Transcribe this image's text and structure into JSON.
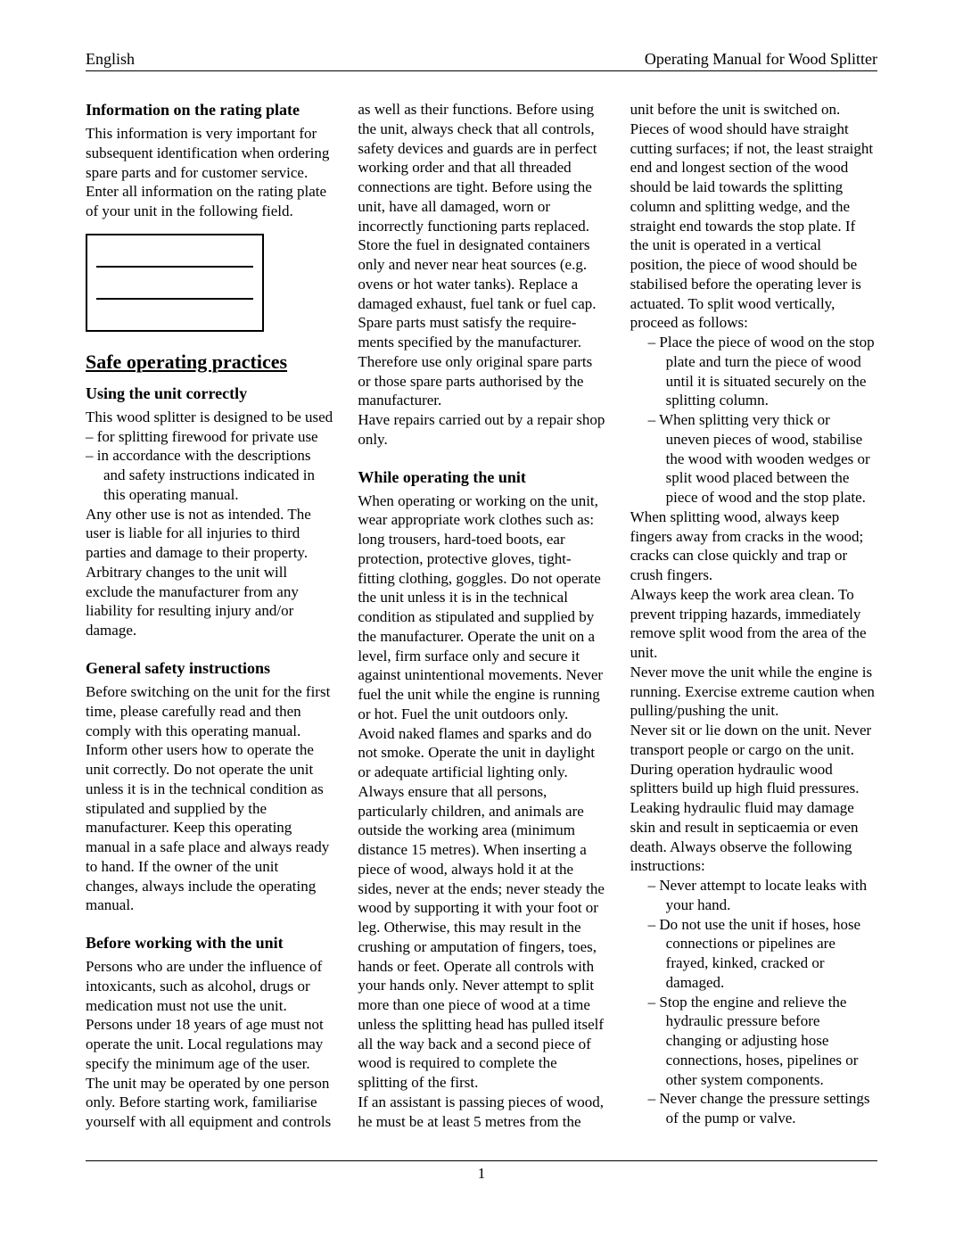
{
  "header": {
    "left": "English",
    "right": "Operating Manual for Wood Splitter"
  },
  "footer": {
    "page": "1"
  },
  "col1": {
    "h_rating": "Information on the rating plate",
    "rating_p1": "This information is very important for subsequent identification when ordering spare parts and for customer service.",
    "rating_p2": "Enter all information on the rating plate of your unit in the following field.",
    "h_safe": "Safe operating practices",
    "h_using": "Using the unit correctly",
    "using_p1": "This wood splitter is designed to be used",
    "using_li1": "for splitting firewood for private use",
    "using_li2": "in accordance with the descriptions and safety instructions indicated in this operating manual.",
    "using_p2": "Any other use is not as intended. The user is liable for all injuries to third parties and damage to their property.",
    "using_p3": "Arbitrary changes to the unit will exclude the manufacturer from any liability for resulting injury and/or damage.",
    "h_general": "General safety instructions",
    "general_p1": "Before switching on the unit for the first time, please carefully read and then comply with this operating manual. Inform other users how to operate the unit correctly. Do not operate the unit unless it is in the technical condition as stipulated and supplied by the manufacturer. Keep this operating manual in a safe place and always ready to hand. If the owner of the unit changes, always include the operating manual.",
    "h_before": "Before working with the unit",
    "before_p1": "Persons who are under the influence of intoxicants, such as alcohol, drugs or medication must not use the unit. Persons under 18 years of age must not operate the unit. Local regulations may specify the minimum age of the user."
  },
  "col2": {
    "p1": "The unit may be operated by one person only. Before starting work, familiarise yourself with all equipment and controls as well as their functions. Before using the unit, always check that all controls, safety devices and guards are in perfect working order and that all threaded connections are tight. Before using the unit, have all damaged, worn or incorrectly functioning parts replaced.",
    "p2": "Store the fuel in designated containers only and never near heat sources (e.g. ovens or hot water tanks). Replace a damaged exhaust, fuel tank or fuel cap.",
    "p3": "Spare parts must satisfy the require­ments specified by the manufacturer. Therefore use only original spare parts or those spare parts authorised by the manufacturer.",
    "p4": "Have repairs carried out by a repair shop only.",
    "h_while": "While operating the unit",
    "while_p1": "When operating or working on the unit, wear appropriate work clothes such as: long trousers, hard-toed boots, ear protection, protective gloves, tight-fitting clothing, goggles. Do not operate the unit unless it is in the technical condition as stipulated and supplied by the manufacturer. Operate the unit on a level, firm surface only and secure it against unintentional movements. Never fuel the unit while the engine is running or hot. Fuel the unit outdoors only. Avoid naked flames and sparks and do not smoke. Operate the unit in daylight or adequate artificial lighting only. Always ensure that all persons, particularly children, and animals are outside the working area (minimum distance 15 metres). When inserting a piece of wood, always hold it at the sides, never at the ends; never steady the wood by supporting it with your foot or leg. Otherwise, this may result in the crushing or amputation of fingers, toes, hands or feet. Operate all controls with your hands only. Never attempt to split more than one piece of wood at a time unless the splitting head has pulled itself all the way back and a second piece of wood is required to complete the splitting of the first."
  },
  "col3": {
    "p1": "If an assistant is passing pieces of wood, he must be at least 5 metres from the unit before the unit is switched on. Pieces of wood should have straight cutting surfaces; if not, the least straight end and longest section of the wood should be laid towards the splitting column and splitting wedge, and the straight end towards the stop plate. If the unit is operated in a vertical position, the piece of wood should be stabilised before the operating lever is actuated. To split wood vertically, proceed as follows:",
    "li1": "Place the piece of wood on the stop plate and turn the piece of wood until it is situated securely on the splitting column.",
    "li2": "When splitting very thick or uneven pieces of wood, stabilise the wood with wooden wedges or split wood placed between the piece of wood and the stop plate.",
    "p2": "When splitting wood, always keep fingers away from cracks in the wood; cracks can close quickly and trap or crush fingers.",
    "p3": "Always keep the work area clean. To prevent tripping hazards, immediately remove split wood from the area of the unit.",
    "p4": "Never move the unit while the engine is running. Exercise extreme caution when pulling/pushing the unit.",
    "p5": "Never sit or lie down on the unit. Never transport people or cargo on the unit.",
    "p6": "During operation hydraulic wood splitters build up high fluid pressures. Leaking hydraulic fluid may damage skin and result in septicaemia or even death. Always observe the following instructions:",
    "li3": "Never attempt to locate leaks with your hand.",
    "li4": "Do not use the unit if hoses, hose connections or pipelines are frayed, kinked, cracked or damaged.",
    "li5": "Stop the engine and relieve the hydraulic pressure before changing or adjusting hose connections, hoses, pipelines or other system components.",
    "li6": "Never change the pressure settings of the pump or valve."
  }
}
